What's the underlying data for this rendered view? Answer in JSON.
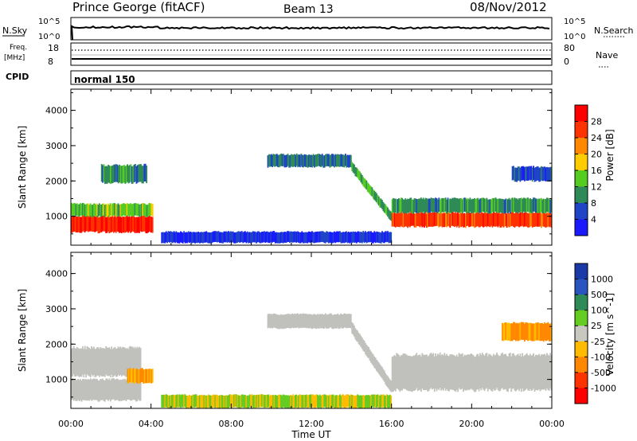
{
  "header": {
    "station": "Prince George (fitACF)",
    "beam": "Beam 13",
    "date": "08/Nov/2012"
  },
  "side_labels": {
    "nsky": "N.Sky",
    "freq_line1": "Freq.",
    "freq_line2": "[MHz]",
    "cpid": "CPID",
    "nsearch": "N.Search",
    "nave": "Nave"
  },
  "strip_ticks": {
    "nsky_top": "10^5",
    "nsky_bottom": "10^0",
    "freq_top": "18",
    "freq_bottom": "8",
    "nave_top": "80",
    "nave_bottom": "0"
  },
  "cpid_text": "normal 150",
  "colors": {
    "power": [
      "#1a1aff",
      "#1f44c8",
      "#2e8b57",
      "#55cc22",
      "#ffcc00",
      "#ff8800",
      "#ff3300",
      "#ff0000"
    ],
    "velocity": [
      "#1a3aa8",
      "#2a55c0",
      "#2e8b57",
      "#66cc22",
      "#c8c8c0",
      "#ffbb00",
      "#ff8800",
      "#ff3300",
      "#ff0000"
    ],
    "ground_scatter": "#c0c0bc"
  },
  "chart_data": [
    {
      "type": "heatmap",
      "name": "power",
      "xlabel": "",
      "ylabel": "Slant Range [km]",
      "ylim": [
        180,
        4600
      ],
      "yticks": [
        "1000",
        "2000",
        "3000",
        "4000"
      ],
      "colorbar_label": "Power [dB]",
      "colorbar_ticks": [
        "4",
        "8",
        "12",
        "16",
        "20",
        "24",
        "28"
      ],
      "scatter_regions": [
        {
          "t_start": 0.0,
          "t_end": 4.1,
          "range_low": 550,
          "range_high": 1000,
          "power_db": 28
        },
        {
          "t_start": 0.0,
          "t_end": 4.1,
          "range_low": 1000,
          "range_high": 1350,
          "power_db": 14
        },
        {
          "t_start": 1.5,
          "t_end": 3.8,
          "range_low": 1950,
          "range_high": 2450,
          "power_db": 10
        },
        {
          "t_start": 9.8,
          "t_end": 14.0,
          "range_low": 2400,
          "range_high": 2750,
          "power_db": 8
        },
        {
          "t_start": 14.0,
          "t_end": 16.0,
          "range_low": 900,
          "range_high": 2400,
          "power_db": 12
        },
        {
          "t_start": 16.0,
          "t_end": 24.0,
          "range_low": 700,
          "range_high": 1100,
          "power_db": 26
        },
        {
          "t_start": 16.0,
          "t_end": 24.0,
          "range_low": 1100,
          "range_high": 1500,
          "power_db": 10
        },
        {
          "t_start": 22.0,
          "t_end": 24.0,
          "range_low": 2000,
          "range_high": 2400,
          "power_db": 6
        },
        {
          "t_start": 4.5,
          "t_end": 16.0,
          "range_low": 250,
          "range_high": 560,
          "power_db": 4
        }
      ]
    },
    {
      "type": "heatmap",
      "name": "velocity",
      "xlabel": "Time UT",
      "ylabel": "Slant Range [km]",
      "ylim": [
        180,
        4600
      ],
      "yticks": [
        "1000",
        "2000",
        "3000",
        "4000"
      ],
      "xticks": [
        "00:00",
        "04:00",
        "08:00",
        "12:00",
        "16:00",
        "20:00",
        "00:00"
      ],
      "xlim_hours": [
        0,
        24
      ],
      "colorbar_label": "Velocity [m s^-1]",
      "colorbar_ticks": [
        "1000",
        "500",
        "100",
        "25",
        "-25",
        "-100",
        "-500",
        "-1000"
      ],
      "scatter_regions": [
        {
          "t_start": 0.0,
          "t_end": 3.5,
          "range_low": 400,
          "range_high": 1000,
          "velocity": 0,
          "ground_scatter": true
        },
        {
          "t_start": 0.0,
          "t_end": 3.5,
          "range_low": 1100,
          "range_high": 1900,
          "velocity": 0,
          "ground_scatter": true
        },
        {
          "t_start": 2.8,
          "t_end": 4.1,
          "range_low": 900,
          "range_high": 1300,
          "velocity": -100
        },
        {
          "t_start": 9.8,
          "t_end": 14.0,
          "range_low": 2450,
          "range_high": 2850,
          "velocity": 0,
          "ground_scatter": true
        },
        {
          "t_start": 14.0,
          "t_end": 16.0,
          "range_low": 600,
          "range_high": 2450,
          "velocity": 0,
          "ground_scatter": true
        },
        {
          "t_start": 16.0,
          "t_end": 24.0,
          "range_low": 700,
          "range_high": 1700,
          "velocity": 0,
          "ground_scatter": true
        },
        {
          "t_start": 21.5,
          "t_end": 24.0,
          "range_low": 2100,
          "range_high": 2600,
          "velocity": -100
        },
        {
          "t_start": 4.5,
          "t_end": 16.0,
          "range_low": 200,
          "range_high": 560,
          "velocity": -25
        }
      ]
    }
  ]
}
